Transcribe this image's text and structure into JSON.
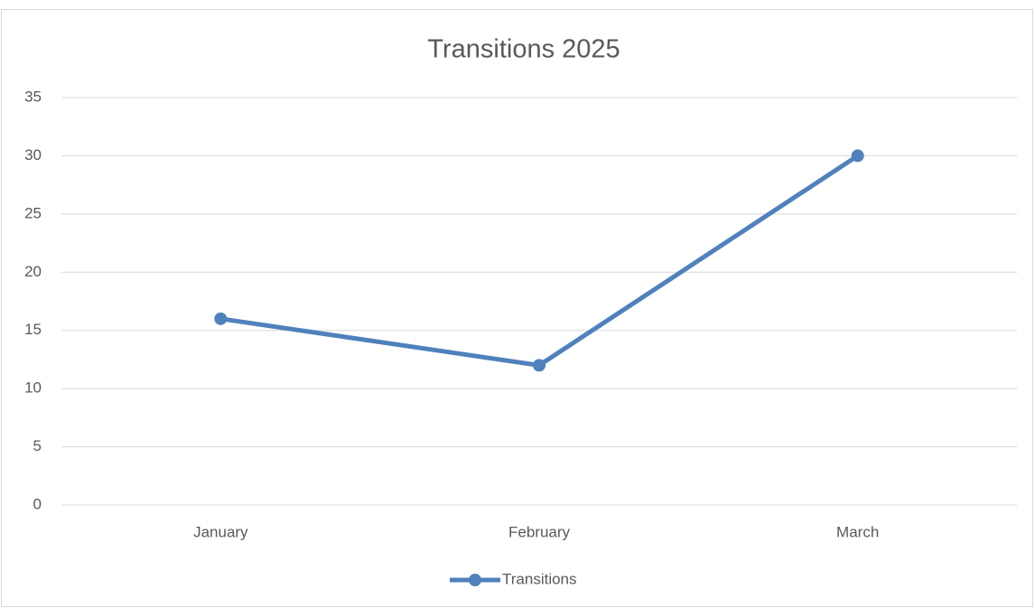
{
  "chart_data": {
    "type": "line",
    "title": "Transitions 2025",
    "categories": [
      "January",
      "February",
      "March"
    ],
    "series": [
      {
        "name": "Transitions",
        "color": "#4f81bd",
        "values": [
          16,
          12,
          30
        ]
      }
    ],
    "ylim": [
      0,
      35
    ],
    "yticks": [
      0,
      5,
      10,
      15,
      20,
      25,
      30,
      35
    ],
    "grid": true,
    "legend": "bottom"
  }
}
